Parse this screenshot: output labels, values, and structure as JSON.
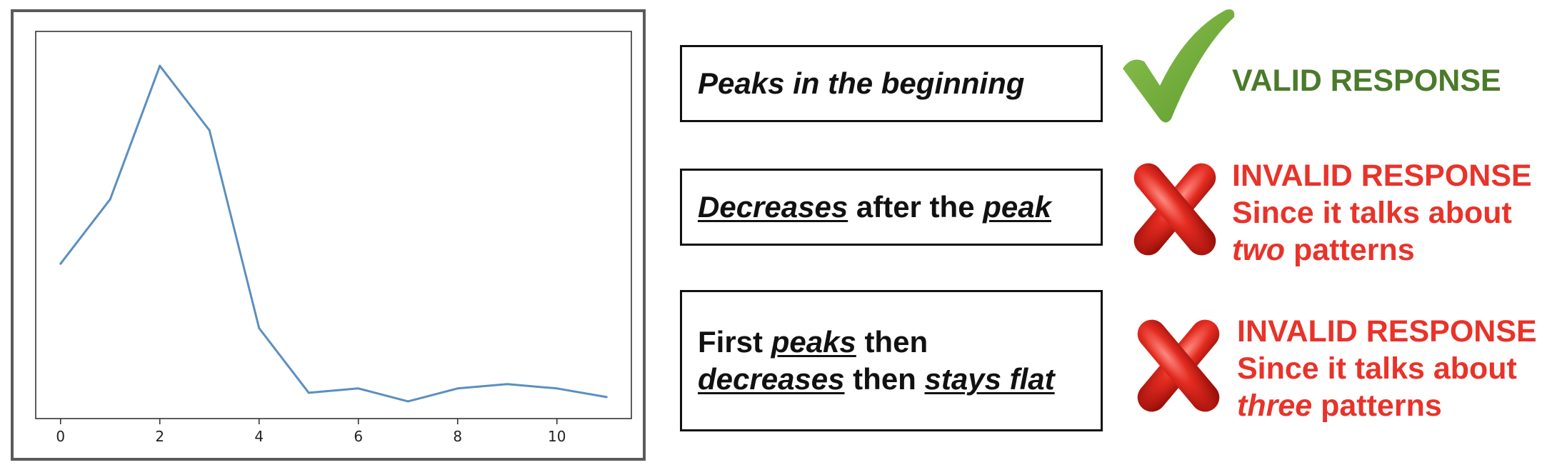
{
  "chart_data": {
    "type": "line",
    "x": [
      0,
      1,
      2,
      3,
      4,
      5,
      6,
      7,
      8,
      9,
      10,
      11
    ],
    "y": [
      0.31,
      0.46,
      0.77,
      0.62,
      0.16,
      0.01,
      0.02,
      -0.01,
      0.02,
      0.03,
      0.02,
      0.0
    ],
    "xlim": [
      -0.5,
      11.5
    ],
    "ylim": [
      -0.05,
      0.85
    ],
    "xticks": [
      0,
      2,
      4,
      6,
      8,
      10
    ],
    "xtick_labels": [
      "0",
      "2",
      "4",
      "6",
      "8",
      "10"
    ],
    "yticks_shown": false,
    "grid": false,
    "line_color": "#5b8fc0"
  },
  "responses": [
    {
      "segments": [
        {
          "t": "Peaks in the beginning",
          "i": true,
          "u": false
        }
      ],
      "verdict": {
        "status": "valid",
        "icon": "checkmark-icon",
        "color": "#4b7a2b",
        "lines": [
          [
            {
              "t": "VALID RESPONSE",
              "i": false
            }
          ]
        ]
      }
    },
    {
      "segments": [
        {
          "t": "Decreases",
          "i": true,
          "u": true
        },
        {
          "t": " after the ",
          "i": false,
          "u": false
        },
        {
          "t": "peak",
          "i": true,
          "u": true
        }
      ],
      "verdict": {
        "status": "invalid",
        "icon": "cross-icon",
        "color": "#e8332a",
        "lines": [
          [
            {
              "t": "INVALID RESPONSE",
              "i": false
            }
          ],
          [
            {
              "t": "Since it talks about",
              "i": false
            }
          ],
          [
            {
              "t": "two",
              "i": true
            },
            {
              "t": " patterns",
              "i": false
            }
          ]
        ]
      }
    },
    {
      "segments": [
        {
          "t": "First ",
          "i": false,
          "u": false
        },
        {
          "t": "peaks",
          "i": true,
          "u": true
        },
        {
          "t": " then",
          "i": false,
          "u": false
        },
        {
          "br": true
        },
        {
          "t": "decreases",
          "i": true,
          "u": true
        },
        {
          "t": " then ",
          "i": false,
          "u": false
        },
        {
          "t": "stays flat",
          "i": true,
          "u": true
        }
      ],
      "verdict": {
        "status": "invalid",
        "icon": "cross-icon",
        "color": "#e8332a",
        "lines": [
          [
            {
              "t": "INVALID RESPONSE",
              "i": false
            }
          ],
          [
            {
              "t": "Since it talks about",
              "i": false
            }
          ],
          [
            {
              "t": "three",
              "i": true
            },
            {
              "t": " patterns",
              "i": false
            }
          ]
        ]
      }
    }
  ]
}
